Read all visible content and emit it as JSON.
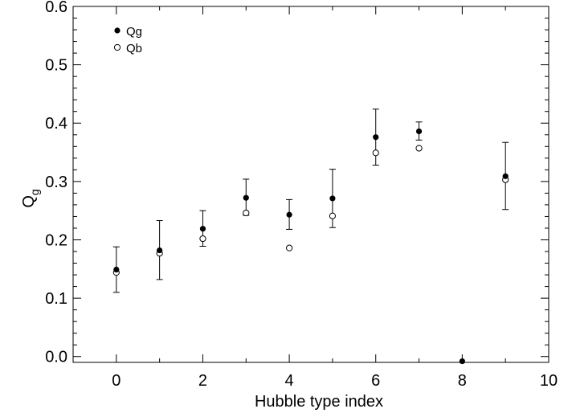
{
  "chart_data": {
    "type": "scatter",
    "title": "",
    "xlabel": "Hubble type index",
    "ylabel": "Q",
    "ylabel_subscript": "g",
    "xlim": [
      -1,
      10
    ],
    "ylim": [
      -0.01,
      0.6
    ],
    "xticks": [
      0,
      2,
      4,
      6,
      8,
      10
    ],
    "xtick_labels": [
      "0",
      "2",
      "4",
      "6",
      "8",
      "10"
    ],
    "yticks": [
      0.0,
      0.1,
      0.2,
      0.3,
      0.4,
      0.5,
      0.6
    ],
    "ytick_labels": [
      "0.0",
      "0.1",
      "0.2",
      "0.3",
      "0.4",
      "0.5",
      "0.6"
    ],
    "grid": false,
    "legend_position": "top-left",
    "colors": {
      "axis": "#000000",
      "marker": "#000000",
      "background": "#ffffff"
    },
    "series": [
      {
        "name": "Qg",
        "marker": "filled-circle",
        "x": [
          0,
          1,
          2,
          3,
          4,
          5,
          6,
          7,
          8,
          9
        ],
        "y": [
          0.149,
          0.182,
          0.219,
          0.272,
          0.243,
          0.271,
          0.376,
          0.386,
          -0.008,
          0.309
        ],
        "err_low": [
          0.11,
          0.132,
          0.189,
          0.242,
          0.218,
          0.221,
          0.328,
          0.371,
          null,
          0.252
        ],
        "err_high": [
          0.188,
          0.233,
          0.25,
          0.304,
          0.269,
          0.321,
          0.424,
          0.402,
          null,
          0.367
        ]
      },
      {
        "name": "Qb",
        "marker": "open-circle",
        "x": [
          0,
          1,
          2,
          3,
          4,
          5,
          6,
          7,
          9
        ],
        "y": [
          0.144,
          0.177,
          0.202,
          0.246,
          0.186,
          0.241,
          0.349,
          0.357,
          0.303
        ]
      }
    ]
  }
}
